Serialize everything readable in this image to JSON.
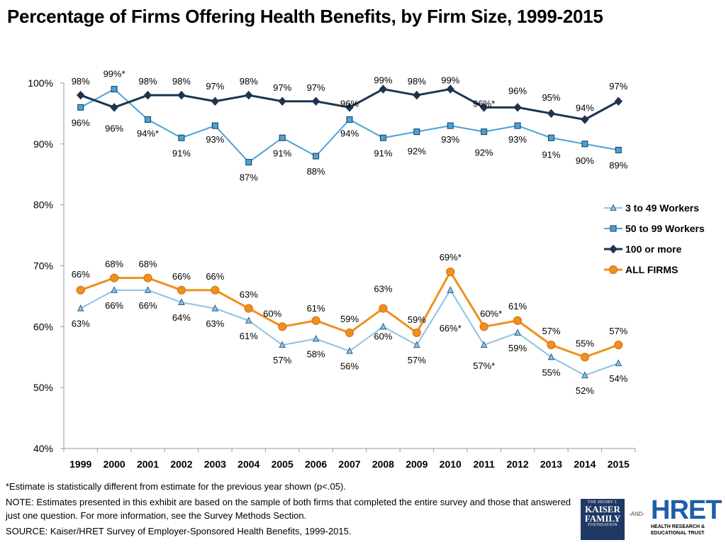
{
  "chart_data": {
    "type": "line",
    "title": "Percentage of Firms Offering Health Benefits, by Firm Size, 1999-2015",
    "xlabel": "",
    "ylabel": "",
    "categories": [
      "1999",
      "2000",
      "2001",
      "2002",
      "2003",
      "2004",
      "2005",
      "2006",
      "2007",
      "2008",
      "2009",
      "2010",
      "2011",
      "2012",
      "2013",
      "2014",
      "2015"
    ],
    "ylim": [
      40,
      100
    ],
    "yticks": [
      40,
      50,
      60,
      70,
      80,
      90,
      100
    ],
    "ytick_labels": [
      "40%",
      "50%",
      "60%",
      "70%",
      "80%",
      "90%",
      "100%"
    ],
    "grid": false,
    "legend_position": "right",
    "series": [
      {
        "name": "3 to 49 Workers",
        "color": "#8cc4e2",
        "marker": "triangle",
        "values": [
          63,
          66,
          66,
          64,
          63,
          61,
          57,
          58,
          56,
          60,
          57,
          66,
          57,
          59,
          55,
          52,
          54
        ],
        "labels": [
          "63%",
          "66%",
          "66%",
          "64%",
          "63%",
          "61%",
          "57%",
          "58%",
          "56%",
          "60%",
          "57%",
          "66%*",
          "57%*",
          "59%",
          "55%",
          "52%",
          "54%"
        ]
      },
      {
        "name": "50 to 99 Workers",
        "color": "#4aa3d8",
        "marker": "square",
        "values": [
          96,
          99,
          94,
          91,
          93,
          87,
          91,
          88,
          94,
          91,
          92,
          93,
          92,
          93,
          91,
          90,
          89
        ],
        "labels": [
          "96%",
          "99%*",
          "94%*",
          "91%",
          "93%",
          "87%",
          "91%",
          "88%",
          "94%",
          "91%",
          "92%",
          "93%",
          "92%",
          "93%",
          "91%",
          "90%",
          "89%"
        ]
      },
      {
        "name": "100 or more",
        "color": "#1b3550",
        "marker": "diamond",
        "values": [
          98,
          96,
          98,
          98,
          97,
          98,
          97,
          97,
          96,
          99,
          98,
          99,
          96,
          96,
          95,
          94,
          97
        ],
        "labels": [
          "98%",
          "96%",
          "98%",
          "98%",
          "97%",
          "98%",
          "97%",
          "97%",
          "96%",
          "99%",
          "98%",
          "99%",
          "96%*",
          "96%",
          "95%",
          "94%",
          "97%"
        ]
      },
      {
        "name": "ALL FIRMS",
        "color": "#f0901e",
        "marker": "circle",
        "values": [
          66,
          68,
          68,
          66,
          66,
          63,
          60,
          61,
          59,
          63,
          59,
          69,
          60,
          61,
          57,
          55,
          57
        ],
        "labels": [
          "66%",
          "68%",
          "68%",
          "66%",
          "66%",
          "63%",
          "60%",
          "61%",
          "59%",
          "63%",
          "59%",
          "69%*",
          "60%*",
          "61%",
          "57%",
          "55%",
          "57%"
        ]
      }
    ]
  },
  "notes": {
    "footnote": "*Estimate is statistically different from estimate for the previous year shown (p<.05).",
    "note": "NOTE: Estimates presented in this exhibit are based on the sample of both firms that completed the entire survey and those that answered just one question. For more information, see the Survey Methods Section.",
    "source": "SOURCE:  Kaiser/HRET Survey of Employer-Sponsored Health Benefits, 1999-2015."
  },
  "logos": {
    "kff_line1": "THE HENRY J.",
    "kff_line2": "KAISER",
    "kff_line3": "FAMILY",
    "kff_line4": "FOUNDATION",
    "and_text": "-AND-",
    "hret_big": "HRET",
    "hret_line1": "HEALTH RESEARCH &",
    "hret_line2": "EDUCATIONAL TRUST"
  }
}
